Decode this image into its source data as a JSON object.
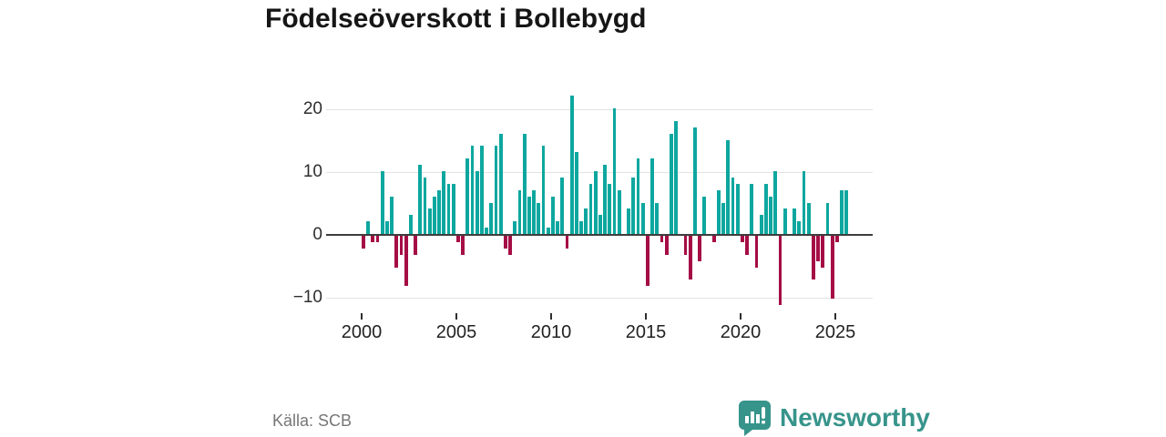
{
  "title": "Födelseöverskott i Bollebygd",
  "source": "Källa: SCB",
  "brand": {
    "name": "Newsworthy",
    "color": "#37948b"
  },
  "chart_data": {
    "type": "bar",
    "title": "Födelseöverskott i Bollebygd",
    "series_note": "quarterly birth surplus, 2000Q1 - 2025Q3",
    "x_start_year": 2000,
    "x_start_quarter": 1,
    "values": [
      -2,
      2,
      -1,
      -1,
      10,
      2,
      6,
      -5,
      -3,
      -8,
      3,
      -3,
      11,
      9,
      4,
      6,
      7,
      10,
      8,
      8,
      -1,
      -3,
      12,
      14,
      10,
      14,
      1,
      5,
      14,
      16,
      -2,
      -3,
      2,
      7,
      16,
      6,
      7,
      5,
      14,
      1,
      6,
      2,
      9,
      -2,
      22,
      13,
      2,
      4,
      8,
      10,
      3,
      11,
      8,
      20,
      7,
      0,
      4,
      9,
      12,
      5,
      -8,
      12,
      5,
      -1,
      -3,
      16,
      18,
      0,
      -3,
      -7,
      17,
      -4,
      6,
      0,
      -1,
      7,
      5,
      15,
      9,
      8,
      -1,
      -3,
      8,
      -5,
      3,
      8,
      6,
      10,
      -11,
      4,
      0,
      4,
      2,
      10,
      5,
      -7,
      -4,
      -5,
      5,
      -10,
      -1,
      7,
      7
    ],
    "x_ticks": [
      2000,
      2005,
      2010,
      2015,
      2020,
      2025
    ],
    "y_ticks": [
      -10,
      0,
      10,
      20
    ],
    "ylim": [
      -12,
      23
    ],
    "xlabel": "",
    "ylabel": "",
    "grid": true,
    "legend": false,
    "colors": {
      "positive": "#0da79f",
      "negative": "#a50d45"
    }
  }
}
